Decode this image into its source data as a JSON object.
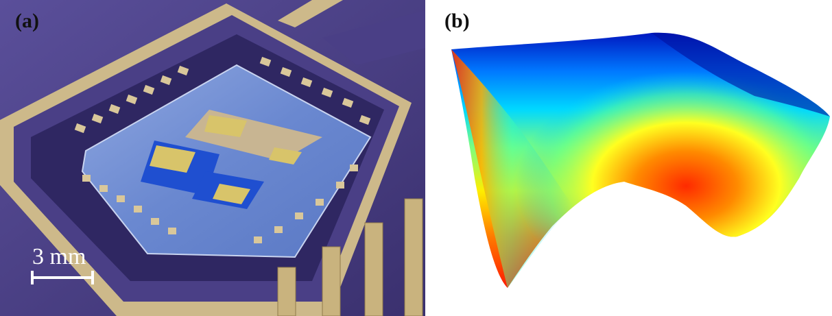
{
  "panels": {
    "a": {
      "label": "(a)",
      "scale_bar": "3 mm"
    },
    "b": {
      "label": "(b)"
    }
  },
  "colors": {
    "substrate": "#4a3f86",
    "gold": "#d8c596",
    "chip_blue": "#6b8fd6",
    "pad_gold": "#d7c27a",
    "colormap": [
      "#0000c8",
      "#0080ff",
      "#00e0ff",
      "#a0ff60",
      "#ffff00",
      "#ff8000",
      "#ff1a00"
    ]
  }
}
